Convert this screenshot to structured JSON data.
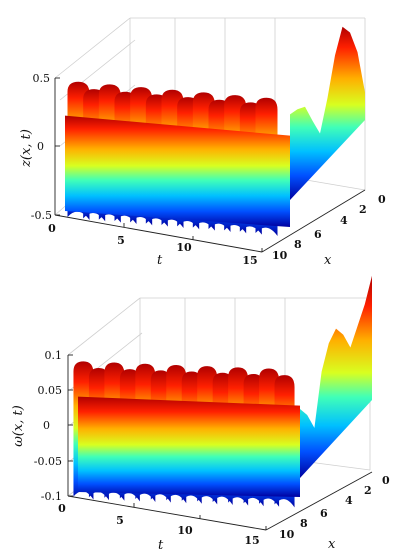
{
  "chart_data": [
    {
      "type": "surface",
      "zlabel": "z(x, t)",
      "xlabel": "x",
      "tlabel": "t",
      "t_range": [
        0,
        15
      ],
      "x_range": [
        0,
        10
      ],
      "z_range": [
        -0.5,
        0.5
      ],
      "t_ticks": [
        "0",
        "5",
        "10",
        "15"
      ],
      "x_ticks": [
        "0",
        "2",
        "4",
        "6",
        "8",
        "10"
      ],
      "z_ticks": [
        "-0.5",
        "0",
        "0.5"
      ],
      "colormap": "jet",
      "surface": {
        "x_profile": [
          0.12,
          0.1,
          0.06,
          -0.1,
          -0.25,
          -0.05,
          0.2,
          0.35,
          0.25,
          0.05,
          -0.3
        ],
        "peak_ridges_t": [
          1.5,
          2.5,
          3.5,
          4.5,
          5.5,
          6.5,
          7.5,
          8.5,
          9.5,
          10.5,
          11.5,
          12.5,
          13.5
        ],
        "min": -0.5,
        "max": 0.55
      }
    },
    {
      "type": "surface",
      "zlabel": "ω(x, t)",
      "xlabel": "x",
      "tlabel": "t",
      "t_range": [
        0,
        15
      ],
      "x_range": [
        0,
        10
      ],
      "z_range": [
        -0.1,
        0.1
      ],
      "t_ticks": [
        "0",
        "5",
        "10",
        "15"
      ],
      "x_ticks": [
        "0",
        "2",
        "4",
        "6",
        "8",
        "10"
      ],
      "z_ticks": [
        "-0.1",
        "-0.05",
        "0",
        "0.05",
        "0.1"
      ],
      "colormap": "jet",
      "surface": {
        "x_profile": [
          0.0,
          -0.02,
          -0.05,
          0.02,
          0.05,
          0.06,
          0.04,
          0.01,
          0.03,
          0.05,
          0.08
        ],
        "peak_ridges_t": [
          1,
          2,
          3,
          4,
          5,
          6,
          7,
          8,
          9,
          10,
          11,
          12,
          13,
          14
        ],
        "min": -0.1,
        "max": 0.1
      }
    }
  ]
}
